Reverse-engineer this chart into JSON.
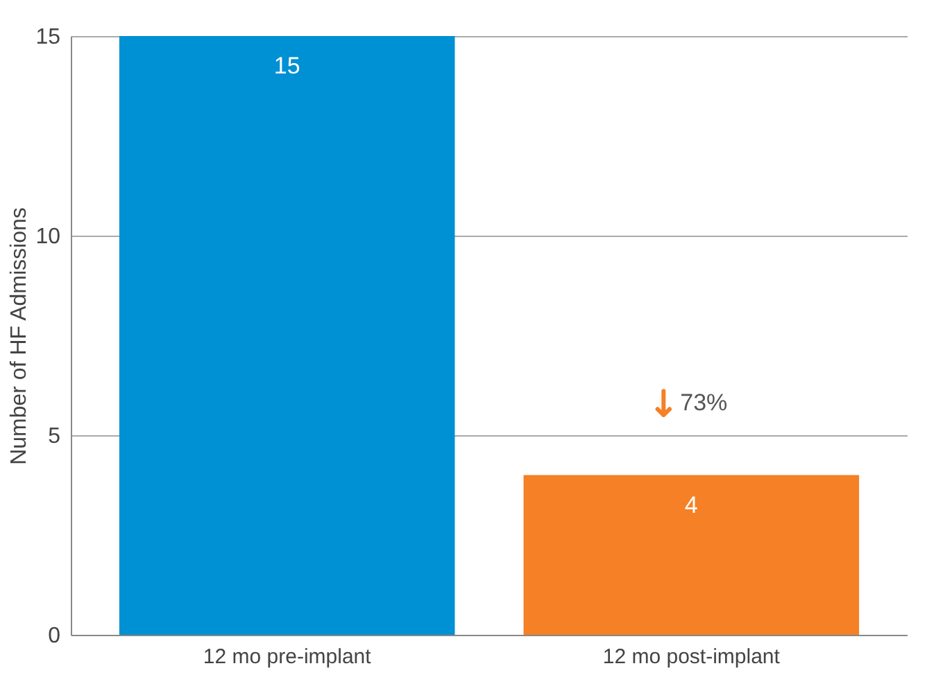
{
  "chart_data": {
    "type": "bar",
    "ylabel": "Number of HF Admissions",
    "categories": [
      "12 mo pre-implant",
      "12 mo post-implant"
    ],
    "values": [
      15,
      4
    ],
    "colors": [
      "#0090d4",
      "#f58025"
    ],
    "ylim": [
      0,
      15
    ],
    "yticks": [
      0,
      5,
      10,
      15
    ],
    "grid": "y",
    "data_labels": true,
    "annotations": [
      "73%"
    ]
  }
}
